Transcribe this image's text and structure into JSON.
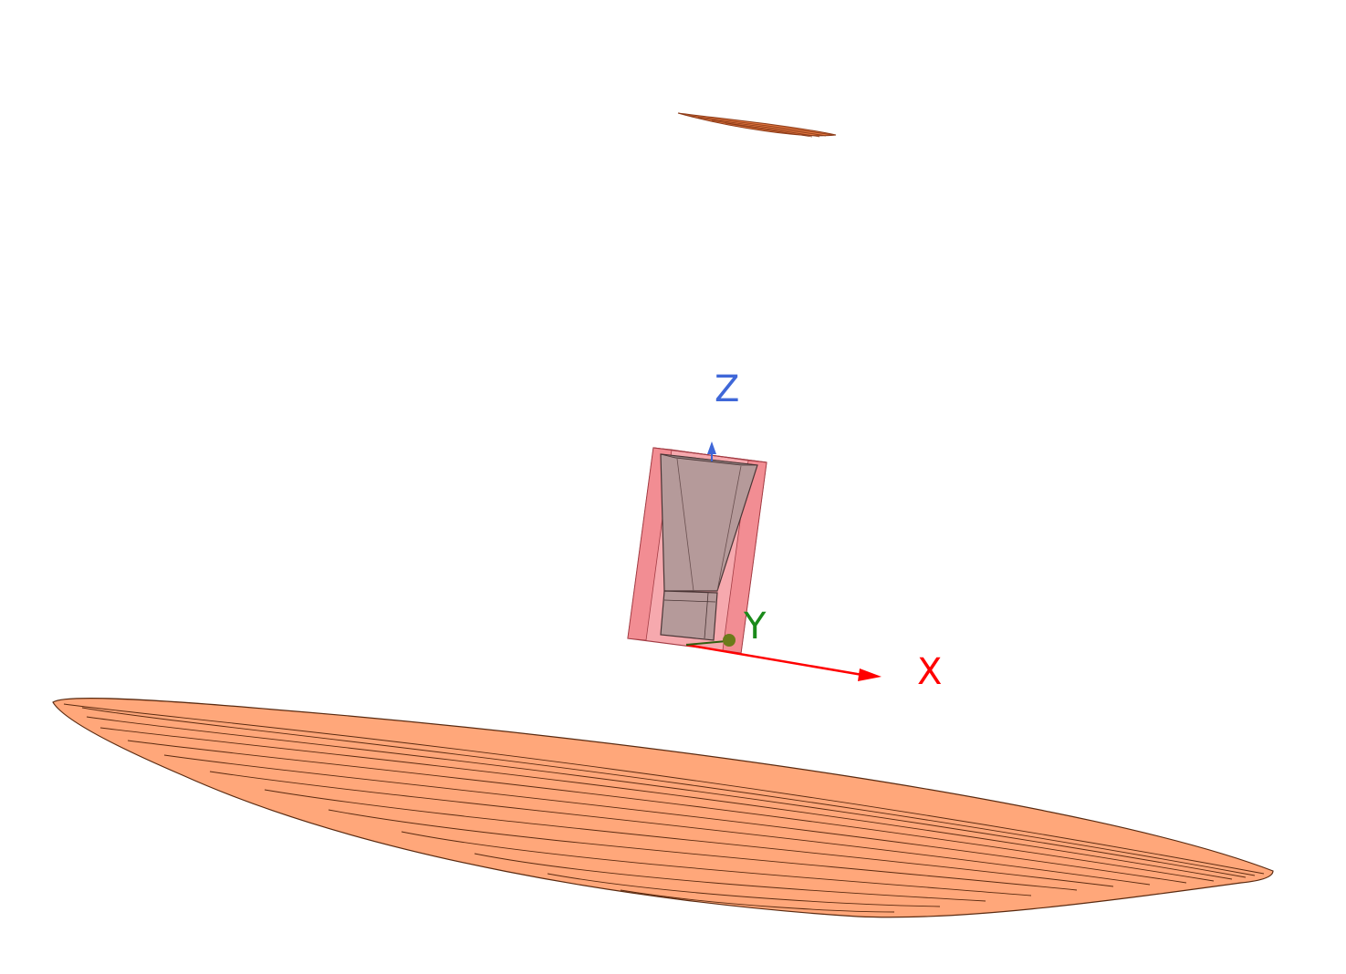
{
  "viewport": {
    "background": "#ffffff"
  },
  "axis_triad": {
    "x_label": "X",
    "y_label": "Y",
    "z_label": "Z",
    "x_color": "#ff0000",
    "y_color": "#1a8a1a",
    "z_color": "#3f67d8"
  },
  "objects": {
    "main_reflector_color": "#ffa77a",
    "sub_reflector_color": "#e2763f",
    "radome_box_color": "#f49aa0",
    "horn_color": "#b59a9a"
  }
}
